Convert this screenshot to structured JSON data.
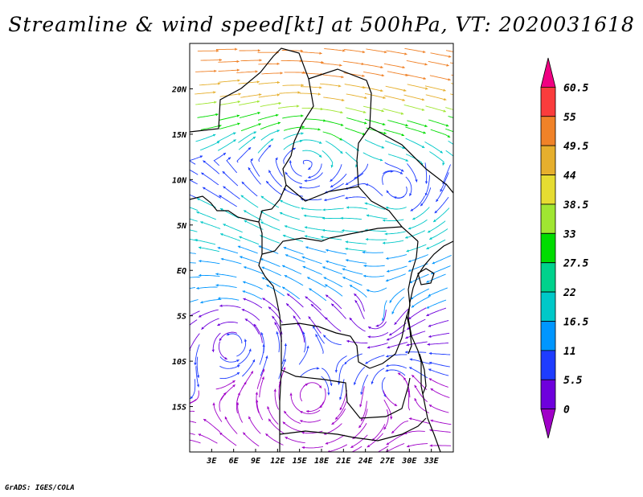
{
  "title": "Streamline & wind speed[kt] at 500hPa, VT: 2020031618",
  "credit": "GrADS: IGES/COLA",
  "map": {
    "lon_range": [
      0,
      36
    ],
    "lat_range": [
      -20,
      25
    ],
    "x_ticks": [
      "3E",
      "6E",
      "9E",
      "12E",
      "15E",
      "18E",
      "21E",
      "24E",
      "27E",
      "30E",
      "33E"
    ],
    "y_ticks": [
      "20N",
      "15N",
      "10N",
      "5N",
      "EQ",
      "5S",
      "10S",
      "15S"
    ]
  },
  "colorbar": {
    "levels": [
      "0",
      "5.5",
      "11",
      "16.5",
      "22",
      "27.5",
      "33",
      "38.5",
      "44",
      "49.5",
      "55",
      "60.5"
    ],
    "colors": [
      "#a000c8",
      "#6e00dc",
      "#1e3cff",
      "#0096ff",
      "#00c8c8",
      "#00d28c",
      "#00dc00",
      "#a0e632",
      "#e6dc32",
      "#e6af2d",
      "#f08228",
      "#fa3c3c",
      "#f00082"
    ]
  }
}
